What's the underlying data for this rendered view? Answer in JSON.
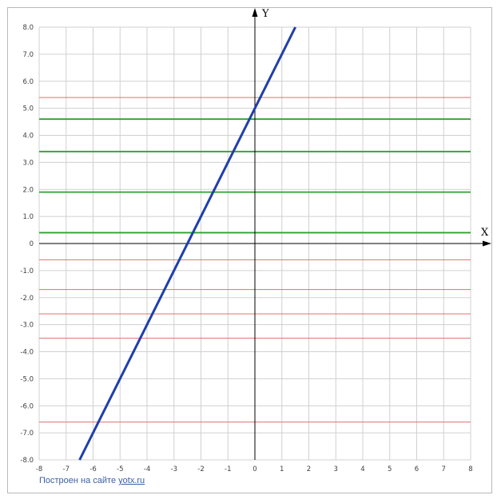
{
  "chart_data": {
    "type": "line",
    "xlim": [
      -8,
      8
    ],
    "ylim": [
      -8,
      8
    ],
    "x_ticks": [
      "-8",
      "-7",
      "-6",
      "-5",
      "-4",
      "-3",
      "-2",
      "-1",
      "0",
      "1",
      "2",
      "3",
      "4",
      "5",
      "6",
      "7",
      "8"
    ],
    "y_ticks": [
      "8.0",
      "7.0",
      "6.0",
      "5.0",
      "4.0",
      "3.0",
      "2.0",
      "1.0",
      "0",
      "-1.0",
      "-2.0",
      "-3.0",
      "-4.0",
      "-5.0",
      "-6.0",
      "-7.0",
      "-8.0"
    ],
    "xlabel": "X",
    "ylabel": "Y",
    "grid": true,
    "series": [
      {
        "color": "#1f3fa8",
        "x": [
          -6.5,
          1.5
        ],
        "y": [
          -8,
          8
        ]
      }
    ],
    "horizontal_lines": [
      {
        "y": 5.4,
        "color": "#e07070"
      },
      {
        "y": 4.6,
        "color": "#2ea02e"
      },
      {
        "y": 3.4,
        "color": "#2ea02e"
      },
      {
        "y": 1.9,
        "color": "#2ea02e"
      },
      {
        "y": 0.4,
        "color": "#2ea02e"
      },
      {
        "y": -0.6,
        "color": "#e07070"
      },
      {
        "y": -1.7,
        "color": "#e07070"
      },
      {
        "y": -2.6,
        "color": "#e07070"
      },
      {
        "y": -3.5,
        "color": "#e07070"
      },
      {
        "y": -6.6,
        "color": "#e07070"
      }
    ]
  },
  "footer": {
    "text": "Построен на сайте ",
    "link": "yotx.ru"
  }
}
